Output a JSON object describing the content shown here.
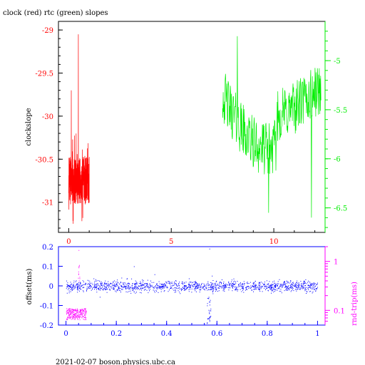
{
  "title": "clock (red) rtc (green) slopes",
  "footer": "2021-02-07 boson.physics.ubc.ca",
  "colors": {
    "red": "#ff0000",
    "green": "#00ee00",
    "blue": "#0000ff",
    "magenta": "#ff00ff",
    "axis": "#000000"
  },
  "chart_data": [
    {
      "type": "line",
      "title": "clock (red) rtc (green) slopes",
      "ylabel": "clockslope",
      "xlim": [
        -0.5,
        12.5
      ],
      "xticks": [
        "0",
        "5",
        "10"
      ],
      "xtick_values": [
        0,
        5,
        10
      ],
      "ylim": [
        -31.35,
        -28.9
      ],
      "yticks": [
        "-29",
        "-29.5",
        "-30",
        "-30.5",
        "-31"
      ],
      "ytick_values": [
        -29,
        -29.5,
        -30,
        -30.5,
        -31
      ],
      "y2lim": [
        -6.75,
        -4.6
      ],
      "y2ticks": [
        "-5",
        "-5.5",
        "-6",
        "-6.5"
      ],
      "y2tick_values": [
        -5,
        -5.5,
        -6,
        -6.5
      ],
      "series": [
        {
          "color": "red",
          "axis": "left",
          "x_range": [
            0.0,
            1.0
          ],
          "summary": {
            "min": -31.25,
            "max": -29.05,
            "typical": [
              -30.45,
              -31.05
            ]
          }
        },
        {
          "color": "green",
          "axis": "right",
          "x_range": [
            7.5,
            12.3
          ],
          "summary": {
            "min": -6.6,
            "max": -4.75,
            "typical": [
              -5.2,
              -6.1
            ]
          }
        }
      ]
    },
    {
      "type": "scatter",
      "ylabel": "offset(ms)",
      "y2label": "rnd-trip(ms)",
      "xlim": [
        -0.03,
        1.03
      ],
      "xticks": [
        "0",
        "0.2",
        "0.4",
        "0.6",
        "0.8",
        "1"
      ],
      "xtick_values": [
        0,
        0.2,
        0.4,
        0.6,
        0.8,
        1
      ],
      "ylim": [
        -0.2,
        0.2
      ],
      "yticks": [
        "0.2",
        "0.1",
        "0",
        "-0.1",
        "-0.2"
      ],
      "ytick_values": [
        0.2,
        0.1,
        0,
        -0.1,
        -0.2
      ],
      "y2scale": "log",
      "y2lim": [
        0.05,
        2.0
      ],
      "y2ticks": [
        "1",
        "0.1"
      ],
      "y2tick_values": [
        1,
        0.1
      ],
      "series": [
        {
          "color": "blue",
          "axis": "left",
          "x_range": [
            0.0,
            1.0
          ],
          "summary": {
            "band": [
              -0.035,
              0.035
            ],
            "outliers": [
              [
                0.56,
                -0.19
              ],
              [
                0.57,
                0.19
              ],
              [
                0.27,
                0.1
              ]
            ]
          }
        },
        {
          "color": "magenta",
          "axis": "right",
          "x_range": [
            0.0,
            0.08
          ],
          "summary": {
            "band": [
              0.065,
              0.11
            ],
            "outliers": [
              [
                0.05,
                0.75
              ],
              [
                0.05,
                1.7
              ]
            ]
          }
        }
      ]
    }
  ]
}
